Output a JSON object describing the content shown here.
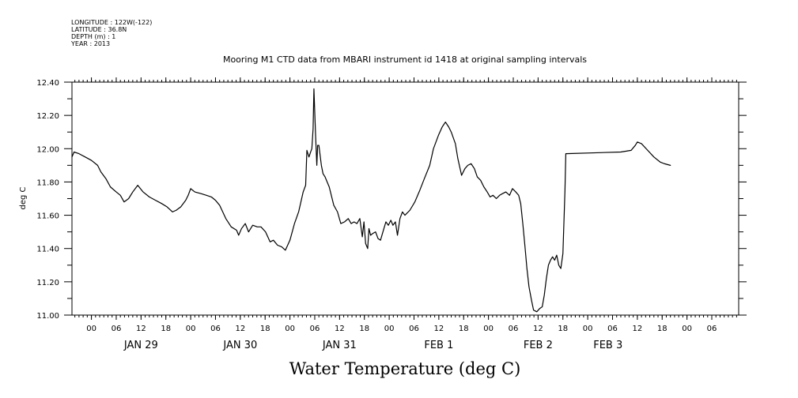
{
  "metadata": [
    "LONGITUDE : 122W(-122)",
    "LATITUDE : 36.8N",
    "DEPTH (m) : 1",
    "YEAR : 2013"
  ],
  "chart_data": {
    "type": "line",
    "title": "Mooring M1 CTD data from MBARI instrument id 1418 at original sampling intervals",
    "xlabel": "Water Temperature (deg C)",
    "ylabel": "deg C",
    "x_unit": "hours from JAN 29 00:00",
    "xlim": [
      -4.7,
      156.5
    ],
    "ylim": [
      11.0,
      12.4
    ],
    "grid": false,
    "legend": "none",
    "y_ticks": [
      11.0,
      11.2,
      11.4,
      11.6,
      11.8,
      12.0,
      12.2,
      12.4
    ],
    "y_tick_labels": [
      "11.00",
      "11.20",
      "11.40",
      "11.60",
      "11.80",
      "12.00",
      "12.20",
      "12.40"
    ],
    "x_ticks": [
      0,
      6,
      12,
      18,
      24,
      30,
      36,
      42,
      48,
      54,
      60,
      66,
      72,
      78,
      84,
      90,
      96,
      102,
      108,
      114,
      120,
      126,
      132,
      138,
      144,
      150
    ],
    "x_tick_labels": [
      "00",
      "06",
      "12",
      "18",
      "00",
      "06",
      "12",
      "18",
      "00",
      "06",
      "12",
      "18",
      "00",
      "06",
      "12",
      "18",
      "00",
      "06",
      "12",
      "18",
      "00",
      "06",
      "12",
      "18",
      "00",
      "06"
    ],
    "day_labels": [
      {
        "label": "JAN 29",
        "x": 12
      },
      {
        "label": "JAN 30",
        "x": 36
      },
      {
        "label": "JAN 31",
        "x": 60
      },
      {
        "label": "FEB  1",
        "x": 84
      },
      {
        "label": "FEB  2",
        "x": 108
      },
      {
        "label": "FEB  3",
        "x": 124.9
      }
    ],
    "series": [
      {
        "values": [
          [
            -4.7,
            11.95
          ],
          [
            -4.2,
            11.98
          ],
          [
            -3.0,
            11.97
          ],
          [
            -1.5,
            11.95
          ],
          [
            0.0,
            11.93
          ],
          [
            1.5,
            11.9
          ],
          [
            2.3,
            11.86
          ],
          [
            3.5,
            11.82
          ],
          [
            4.6,
            11.77
          ],
          [
            6.0,
            11.74
          ],
          [
            7.0,
            11.72
          ],
          [
            7.9,
            11.68
          ],
          [
            9.0,
            11.7
          ],
          [
            10.0,
            11.74
          ],
          [
            11.2,
            11.78
          ],
          [
            12.5,
            11.74
          ],
          [
            14.0,
            11.71
          ],
          [
            15.5,
            11.69
          ],
          [
            17.0,
            11.67
          ],
          [
            18.3,
            11.65
          ],
          [
            19.6,
            11.62
          ],
          [
            20.5,
            11.63
          ],
          [
            21.6,
            11.65
          ],
          [
            22.8,
            11.69
          ],
          [
            23.4,
            11.72
          ],
          [
            24.0,
            11.76
          ],
          [
            25.0,
            11.74
          ],
          [
            26.5,
            11.73
          ],
          [
            27.8,
            11.72
          ],
          [
            29.0,
            11.71
          ],
          [
            30.0,
            11.69
          ],
          [
            31.0,
            11.66
          ],
          [
            32.5,
            11.58
          ],
          [
            33.8,
            11.53
          ],
          [
            35.1,
            11.51
          ],
          [
            35.6,
            11.48
          ],
          [
            36.3,
            11.52
          ],
          [
            37.2,
            11.55
          ],
          [
            38.0,
            11.5
          ],
          [
            39.0,
            11.54
          ],
          [
            40.1,
            11.53
          ],
          [
            41.0,
            11.53
          ],
          [
            42.1,
            11.5
          ],
          [
            43.2,
            11.44
          ],
          [
            44.0,
            11.45
          ],
          [
            45.0,
            11.42
          ],
          [
            46.0,
            11.41
          ],
          [
            46.9,
            11.39
          ],
          [
            48.0,
            11.45
          ],
          [
            49.1,
            11.55
          ],
          [
            50.1,
            11.62
          ],
          [
            51.2,
            11.74
          ],
          [
            51.8,
            11.78
          ],
          [
            52.1,
            11.99
          ],
          [
            52.6,
            11.95
          ],
          [
            53.0,
            11.98
          ],
          [
            53.3,
            12.0
          ],
          [
            53.6,
            12.12
          ],
          [
            53.8,
            12.36
          ],
          [
            54.2,
            12.08
          ],
          [
            54.5,
            11.9
          ],
          [
            54.7,
            12.02
          ],
          [
            55.0,
            12.02
          ],
          [
            55.6,
            11.9
          ],
          [
            56.0,
            11.85
          ],
          [
            56.5,
            11.83
          ],
          [
            57.5,
            11.77
          ],
          [
            58.6,
            11.66
          ],
          [
            59.5,
            11.62
          ],
          [
            60.3,
            11.55
          ],
          [
            61.2,
            11.56
          ],
          [
            62.1,
            11.58
          ],
          [
            62.8,
            11.55
          ],
          [
            63.5,
            11.56
          ],
          [
            64.2,
            11.55
          ],
          [
            64.9,
            11.58
          ],
          [
            65.5,
            11.47
          ],
          [
            65.9,
            11.56
          ],
          [
            66.3,
            11.43
          ],
          [
            66.8,
            11.4
          ],
          [
            67.1,
            11.52
          ],
          [
            67.5,
            11.48
          ],
          [
            68.0,
            11.49
          ],
          [
            68.7,
            11.5
          ],
          [
            69.3,
            11.46
          ],
          [
            69.9,
            11.45
          ],
          [
            70.6,
            11.51
          ],
          [
            71.2,
            11.56
          ],
          [
            71.8,
            11.54
          ],
          [
            72.4,
            11.57
          ],
          [
            72.9,
            11.54
          ],
          [
            73.5,
            11.56
          ],
          [
            74.0,
            11.48
          ],
          [
            74.6,
            11.58
          ],
          [
            75.2,
            11.62
          ],
          [
            75.8,
            11.6
          ],
          [
            77.0,
            11.63
          ],
          [
            78.2,
            11.68
          ],
          [
            79.4,
            11.75
          ],
          [
            80.5,
            11.82
          ],
          [
            81.8,
            11.9
          ],
          [
            82.7,
            12.0
          ],
          [
            83.9,
            12.08
          ],
          [
            84.8,
            12.13
          ],
          [
            85.6,
            12.16
          ],
          [
            86.4,
            12.13
          ],
          [
            87.0,
            12.1
          ],
          [
            88.0,
            12.03
          ],
          [
            88.6,
            11.94
          ],
          [
            89.5,
            11.84
          ],
          [
            90.3,
            11.88
          ],
          [
            91.0,
            11.9
          ],
          [
            91.8,
            11.91
          ],
          [
            92.6,
            11.88
          ],
          [
            93.3,
            11.83
          ],
          [
            94.1,
            11.81
          ],
          [
            94.9,
            11.77
          ],
          [
            95.7,
            11.74
          ],
          [
            96.4,
            11.71
          ],
          [
            97.1,
            11.72
          ],
          [
            97.9,
            11.7
          ],
          [
            98.7,
            11.72
          ],
          [
            99.4,
            11.73
          ],
          [
            100.2,
            11.74
          ],
          [
            101.1,
            11.72
          ],
          [
            101.8,
            11.76
          ],
          [
            102.6,
            11.74
          ],
          [
            103.3,
            11.72
          ],
          [
            103.8,
            11.67
          ],
          [
            104.3,
            11.55
          ],
          [
            104.8,
            11.42
          ],
          [
            105.3,
            11.28
          ],
          [
            105.8,
            11.17
          ],
          [
            106.4,
            11.09
          ],
          [
            106.9,
            11.03
          ],
          [
            107.7,
            11.02
          ],
          [
            108.4,
            11.04
          ],
          [
            109.0,
            11.05
          ],
          [
            109.5,
            11.12
          ],
          [
            110.0,
            11.22
          ],
          [
            110.5,
            11.3
          ],
          [
            111.0,
            11.33
          ],
          [
            111.5,
            11.35
          ],
          [
            112.0,
            11.33
          ],
          [
            112.5,
            11.36
          ],
          [
            113.0,
            11.3
          ],
          [
            113.5,
            11.28
          ],
          [
            114.0,
            11.37
          ],
          [
            114.5,
            11.75
          ],
          [
            114.7,
            11.97
          ],
          [
            128.0,
            11.98
          ],
          [
            130.5,
            11.99
          ],
          [
            131.5,
            12.02
          ],
          [
            132.0,
            12.04
          ],
          [
            133.0,
            12.03
          ],
          [
            134.5,
            11.99
          ],
          [
            136.0,
            11.95
          ],
          [
            137.5,
            11.92
          ],
          [
            138.5,
            11.91
          ],
          [
            140.0,
            11.9
          ]
        ]
      }
    ]
  }
}
